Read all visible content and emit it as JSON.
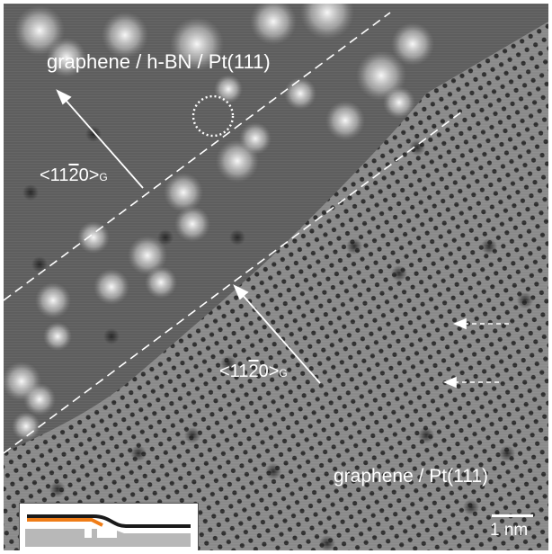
{
  "labels": {
    "region_top": "graphene / h-BN / Pt(111)",
    "region_bottom": "graphene / Pt(111)",
    "dir_top_main": "<11",
    "dir_top_bar": "2",
    "dir_top_end": "0>",
    "dir_top_sub": "G",
    "dir_bottom_main": "<11",
    "dir_bottom_bar": "2",
    "dir_bottom_end": "0>",
    "dir_bottom_sub": "G",
    "scale": "1 nm"
  },
  "colors": {
    "graphene_layer": "#1a1a1a",
    "hbn_layer": "#f07d17",
    "substrate": "#b8b8b8"
  }
}
